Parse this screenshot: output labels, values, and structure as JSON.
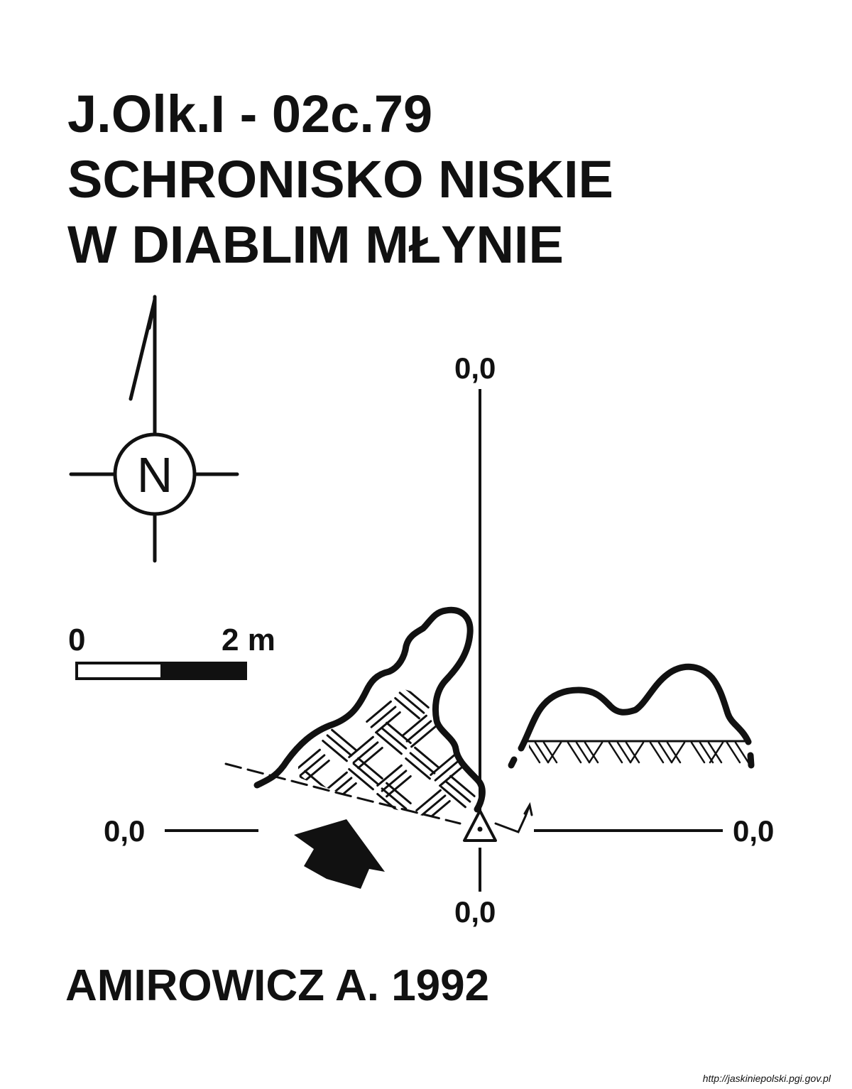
{
  "title": {
    "line1": "J.Olk.I - 02c.79",
    "line2": "SCHRONISKO NISKIE",
    "line3": "W DIABLIM MŁYNIE"
  },
  "north_arrow": {
    "letter": "N",
    "icon": "north-arrow-compass-icon"
  },
  "scale_bar": {
    "start_label": "0",
    "end_label": "2 m"
  },
  "axes": {
    "top_label": "0,0",
    "bottom_label": "0,0",
    "left_label": "0,0",
    "right_label": "0,0"
  },
  "author": "AMIROWICZ A. 1992",
  "source": "http://jaskiniepolski.pgi.gov.pl",
  "colors": {
    "ink": "#111111",
    "background": "#ffffff"
  }
}
